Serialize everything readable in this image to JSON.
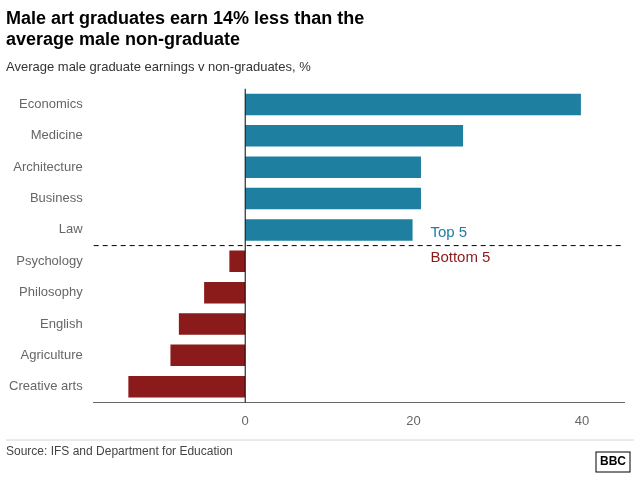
{
  "chart_data": {
    "type": "bar",
    "orientation": "horizontal",
    "title": "Male art graduates earn 14% less than the\naverage male non-graduate",
    "subtitle": "Average male graduate earnings v non-graduates, %",
    "source": "Source: IFS and Department for Education",
    "categories": [
      "Economics",
      "Medicine",
      "Architecture",
      "Business",
      "Law",
      "Psychology",
      "Philosophy",
      "English",
      "Agriculture",
      "Creative arts"
    ],
    "values": [
      40,
      26,
      21,
      21,
      20,
      -2,
      -5,
      -8,
      -9,
      -14
    ],
    "colors": [
      "#1f7fa0",
      "#1f7fa0",
      "#1f7fa0",
      "#1f7fa0",
      "#1f7fa0",
      "#8b1a1a",
      "#8b1a1a",
      "#8b1a1a",
      "#8b1a1a",
      "#8b1a1a"
    ],
    "xlim": [
      -18,
      45
    ],
    "xticks": [
      0,
      20,
      40
    ],
    "grid": false,
    "annotations": [
      {
        "text": "Top 5",
        "color": "#1f7fa0"
      },
      {
        "text": "Bottom 5",
        "color": "#8b1a1a"
      },
      {
        "text": "BBC"
      }
    ]
  }
}
